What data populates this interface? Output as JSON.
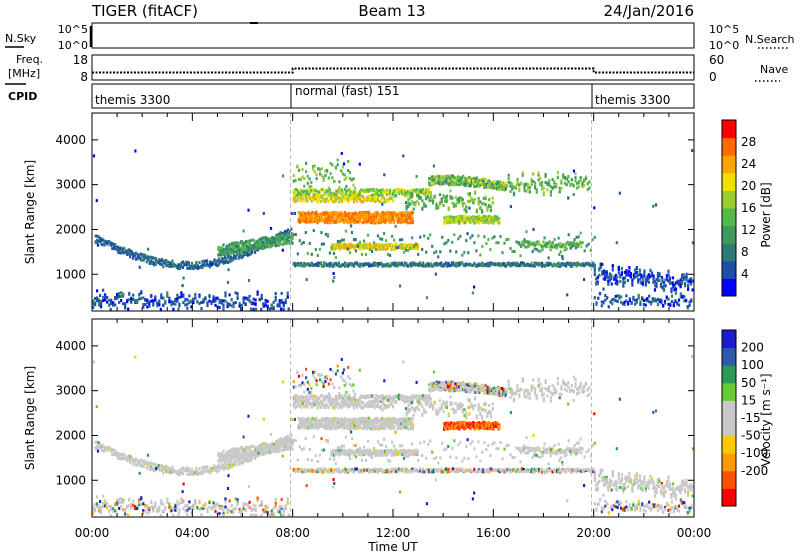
{
  "header": {
    "radar": "TIGER (fitACF)",
    "beam": "Beam 13",
    "date": "24/Jan/2016"
  },
  "colors": {
    "power": [
      "#0000ff",
      "#1e4fa8",
      "#2f7a78",
      "#3f9a5c",
      "#55b84a",
      "#9acd32",
      "#f0e000",
      "#ffa500",
      "#ff6a00",
      "#ff0000"
    ],
    "velocity": [
      "#ff0000",
      "#ff5000",
      "#ff9a00",
      "#ffc800",
      "#c8c8c8",
      "#c8c8c8",
      "#66cc33",
      "#2a9a55",
      "#2a5aa8",
      "#1c1cc8"
    ],
    "ground_scatter": "#c8c8c8"
  },
  "chart_data": [
    {
      "type": "line",
      "name": "status-nsky",
      "left_label": "N.Sky",
      "left_ticks": [
        "10^5",
        "10^0"
      ],
      "right_label": "N.Search",
      "right_ticks": [
        "10^5",
        "10^0"
      ]
    },
    {
      "type": "line",
      "name": "status-freq-nave",
      "left_label_1": "Freq.",
      "left_label_2": "[MHz]",
      "left_ticks": [
        "18",
        "8"
      ],
      "right_label": "Nave",
      "right_ticks": [
        "60",
        "0"
      ],
      "freq_series": [
        {
          "x0": 0,
          "x1": 8,
          "y": 11
        },
        {
          "x0": 8,
          "x1": 20,
          "y": 12.6
        },
        {
          "x0": 20,
          "x1": 24,
          "y": 11
        }
      ]
    },
    {
      "type": "table",
      "name": "cpid",
      "label": "CPID",
      "segments": [
        {
          "start": 0,
          "end": 8,
          "label": "themis 3300"
        },
        {
          "start": 8,
          "end": 20,
          "label": "normal (fast) 151"
        },
        {
          "start": 20,
          "end": 24,
          "label": "themis 3300"
        }
      ]
    },
    {
      "type": "heatmap",
      "name": "power",
      "ylabel": "Slant Range [km]",
      "yticks": [
        1000,
        2000,
        3000,
        4000
      ],
      "ylim": [
        180,
        4600
      ],
      "xlim": [
        0,
        24
      ],
      "colorbar_label": "Power [dB]",
      "colorbar_ticks": [
        4,
        8,
        12,
        16,
        20,
        24,
        28
      ],
      "colorbar_range": [
        0,
        32
      ]
    },
    {
      "type": "heatmap",
      "name": "velocity",
      "ylabel": "Slant Range [km]",
      "yticks": [
        1000,
        2000,
        3000,
        4000
      ],
      "ylim": [
        180,
        4600
      ],
      "xlim": [
        0,
        24
      ],
      "xlabel": "Time UT",
      "xticks": [
        "00:00",
        "04:00",
        "08:00",
        "12:00",
        "16:00",
        "20:00",
        "00:00"
      ],
      "colorbar_label": "Velocity [m s⁻¹]",
      "colorbar_ticks": [
        "200",
        "100",
        "50",
        "15",
        "-15",
        "-50",
        "-100",
        "-200"
      ]
    }
  ]
}
